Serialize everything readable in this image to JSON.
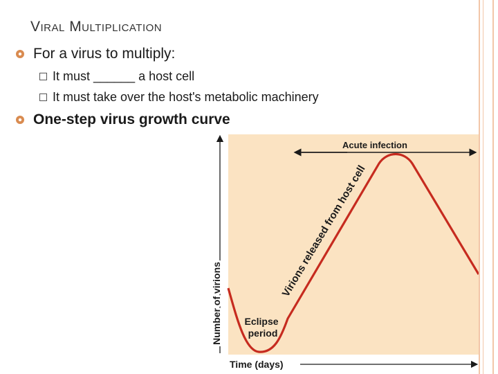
{
  "slide": {
    "title": "Viral Multiplication",
    "bullet_1": "For a virus to multiply:",
    "sub_1": "It must ______ a host cell",
    "sub_2": "It must take over the host's metabolic machinery",
    "bullet_2": "One-step virus growth curve"
  },
  "icons": {
    "bullet": "gear-bullet-icon",
    "sub_bullet": "box-bullet-icon"
  },
  "colors": {
    "bullet_icon": "#d98b50",
    "chart_bg": "#fbe3c2",
    "curve": "#c62b1f",
    "decorative_border": "#f2c6a8"
  },
  "chart_data": {
    "type": "line",
    "xlabel": "Time (days)",
    "ylabel": "Number of virions",
    "annotations": {
      "eclipse": "Eclipse period",
      "released": "Virions released from host cell",
      "acute": "Acute infection"
    },
    "curve_shape": "one-step growth: dip (eclipse), steep rise, peak, decline"
  }
}
